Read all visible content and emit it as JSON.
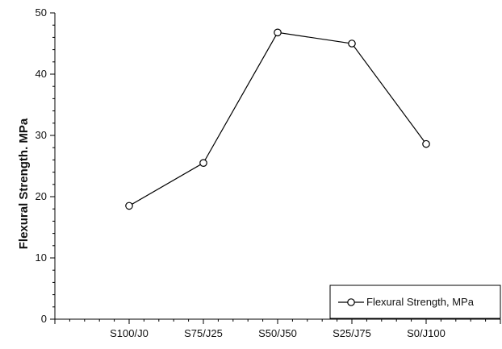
{
  "chart_data": {
    "type": "line",
    "title": "",
    "xlabel": "",
    "ylabel": "Flexural Strength. MPa",
    "categories": [
      "S100/J0",
      "S75/J25",
      "S50/J50",
      "S25/J75",
      "S0/J100"
    ],
    "ylim": [
      0,
      50
    ],
    "yticks": [
      0,
      10,
      20,
      30,
      40,
      50
    ],
    "grid": false,
    "legend_position": "bottom-right",
    "series": [
      {
        "name": "Flexural Strength, MPa",
        "values": [
          18.5,
          25.5,
          46.8,
          45.0,
          28.6
        ],
        "color": "#000000",
        "marker": "open-circle"
      }
    ]
  }
}
